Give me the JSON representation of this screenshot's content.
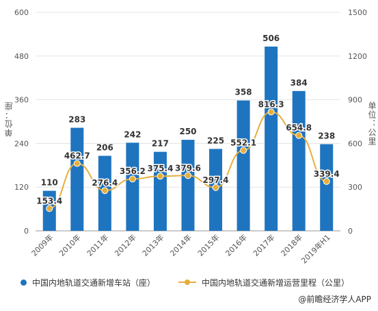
{
  "chart_data": {
    "type": "bar",
    "categories": [
      "2009年",
      "2010年",
      "2011年",
      "2012年",
      "2013年",
      "2014年",
      "2015年",
      "2016年",
      "2017年",
      "2018年",
      "2019年H1"
    ],
    "series": [
      {
        "name": "中国内地轨道交通新增车站（座）",
        "type": "bar",
        "axis": "left",
        "values": [
          110,
          283,
          206,
          242,
          217,
          250,
          225,
          358,
          506,
          384,
          238
        ],
        "labels": [
          "110",
          "283",
          "206",
          "242",
          "217",
          "250",
          "225",
          "358",
          "506",
          "384",
          "238"
        ]
      },
      {
        "name": "中国内地轨道交通新增运营里程（公里）",
        "type": "line",
        "axis": "right",
        "values": [
          153.4,
          462.7,
          276.4,
          356.2,
          375.4,
          379.6,
          297.4,
          552.1,
          816.3,
          654.8,
          339.4
        ],
        "labels": [
          "153.4",
          "462.7",
          "276.4",
          "356.2",
          "375.4",
          "379.6",
          "297.4",
          "552.1",
          "816.3",
          "654.8",
          "339.4"
        ]
      }
    ],
    "y_left": {
      "label": "单位：座",
      "range": [
        0,
        600
      ],
      "ticks": [
        "0",
        "120",
        "240",
        "360",
        "480",
        "600"
      ]
    },
    "y_right": {
      "label": "单位：公里",
      "range": [
        0,
        1500
      ],
      "ticks": [
        "0",
        "300",
        "600",
        "900",
        "1200",
        "1500"
      ]
    },
    "grid": true,
    "legend_position": "bottom",
    "colors": {
      "bar": "#1f74bf",
      "line": "#e6ae3c"
    }
  },
  "source": "@前瞻经济学人APP"
}
